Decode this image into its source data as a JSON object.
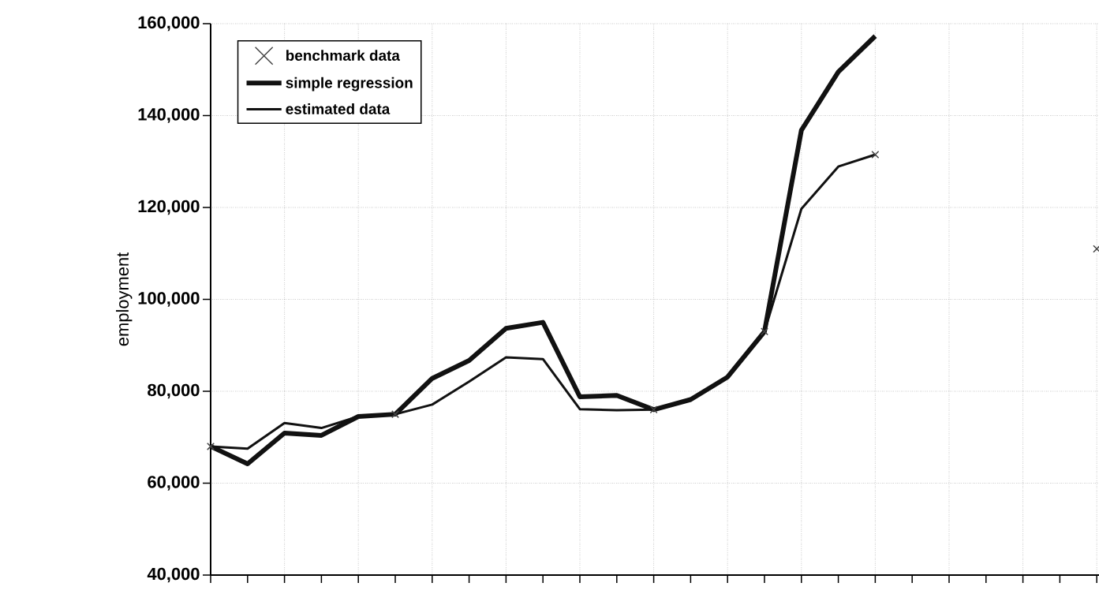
{
  "chart_data": {
    "type": "line",
    "ylabel": "employment",
    "categories": [
      null,
      null,
      null,
      null,
      null,
      null,
      null,
      null,
      null,
      null,
      null,
      null,
      null,
      null,
      null,
      null,
      null,
      null,
      null,
      null,
      null,
      null,
      null,
      null,
      null
    ],
    "series": [
      {
        "name": "benchmark data",
        "type": "scatter",
        "marker": "cross",
        "color": "#444444",
        "values": [
          68000,
          null,
          null,
          null,
          null,
          75000,
          null,
          null,
          null,
          null,
          null,
          null,
          76000,
          null,
          null,
          93000,
          null,
          null,
          131500,
          null,
          null,
          null,
          null,
          null,
          111000
        ]
      },
      {
        "name": "simple regression",
        "color": "#111111",
        "values": [
          68000,
          64200,
          70900,
          70400,
          74500,
          75000,
          82800,
          86700,
          93700,
          95000,
          78800,
          79100,
          76000,
          78200,
          83100,
          93000,
          136800,
          149500,
          157300,
          null,
          null,
          null,
          null,
          null,
          null
        ]
      },
      {
        "name": "estimated data",
        "color": "#111111",
        "values": [
          68000,
          67500,
          73100,
          72000,
          74500,
          75000,
          77100,
          82100,
          87400,
          87000,
          76100,
          75900,
          76000,
          78200,
          83100,
          93000,
          119700,
          128900,
          131500,
          null,
          null,
          null,
          null,
          null,
          null
        ]
      }
    ],
    "ylim": [
      40000,
      160000
    ],
    "yticks": [
      {
        "value": 40000,
        "label": "40,000"
      },
      {
        "value": 60000,
        "label": "60,000"
      },
      {
        "value": 80000,
        "label": "80,000"
      },
      {
        "value": 100000,
        "label": "100,000"
      },
      {
        "value": 120000,
        "label": "120,000"
      },
      {
        "value": 140000,
        "label": "140,000"
      },
      {
        "value": 160000,
        "label": "160,000"
      }
    ],
    "tick_labels": "y",
    "grid": true,
    "legend": "top left"
  }
}
